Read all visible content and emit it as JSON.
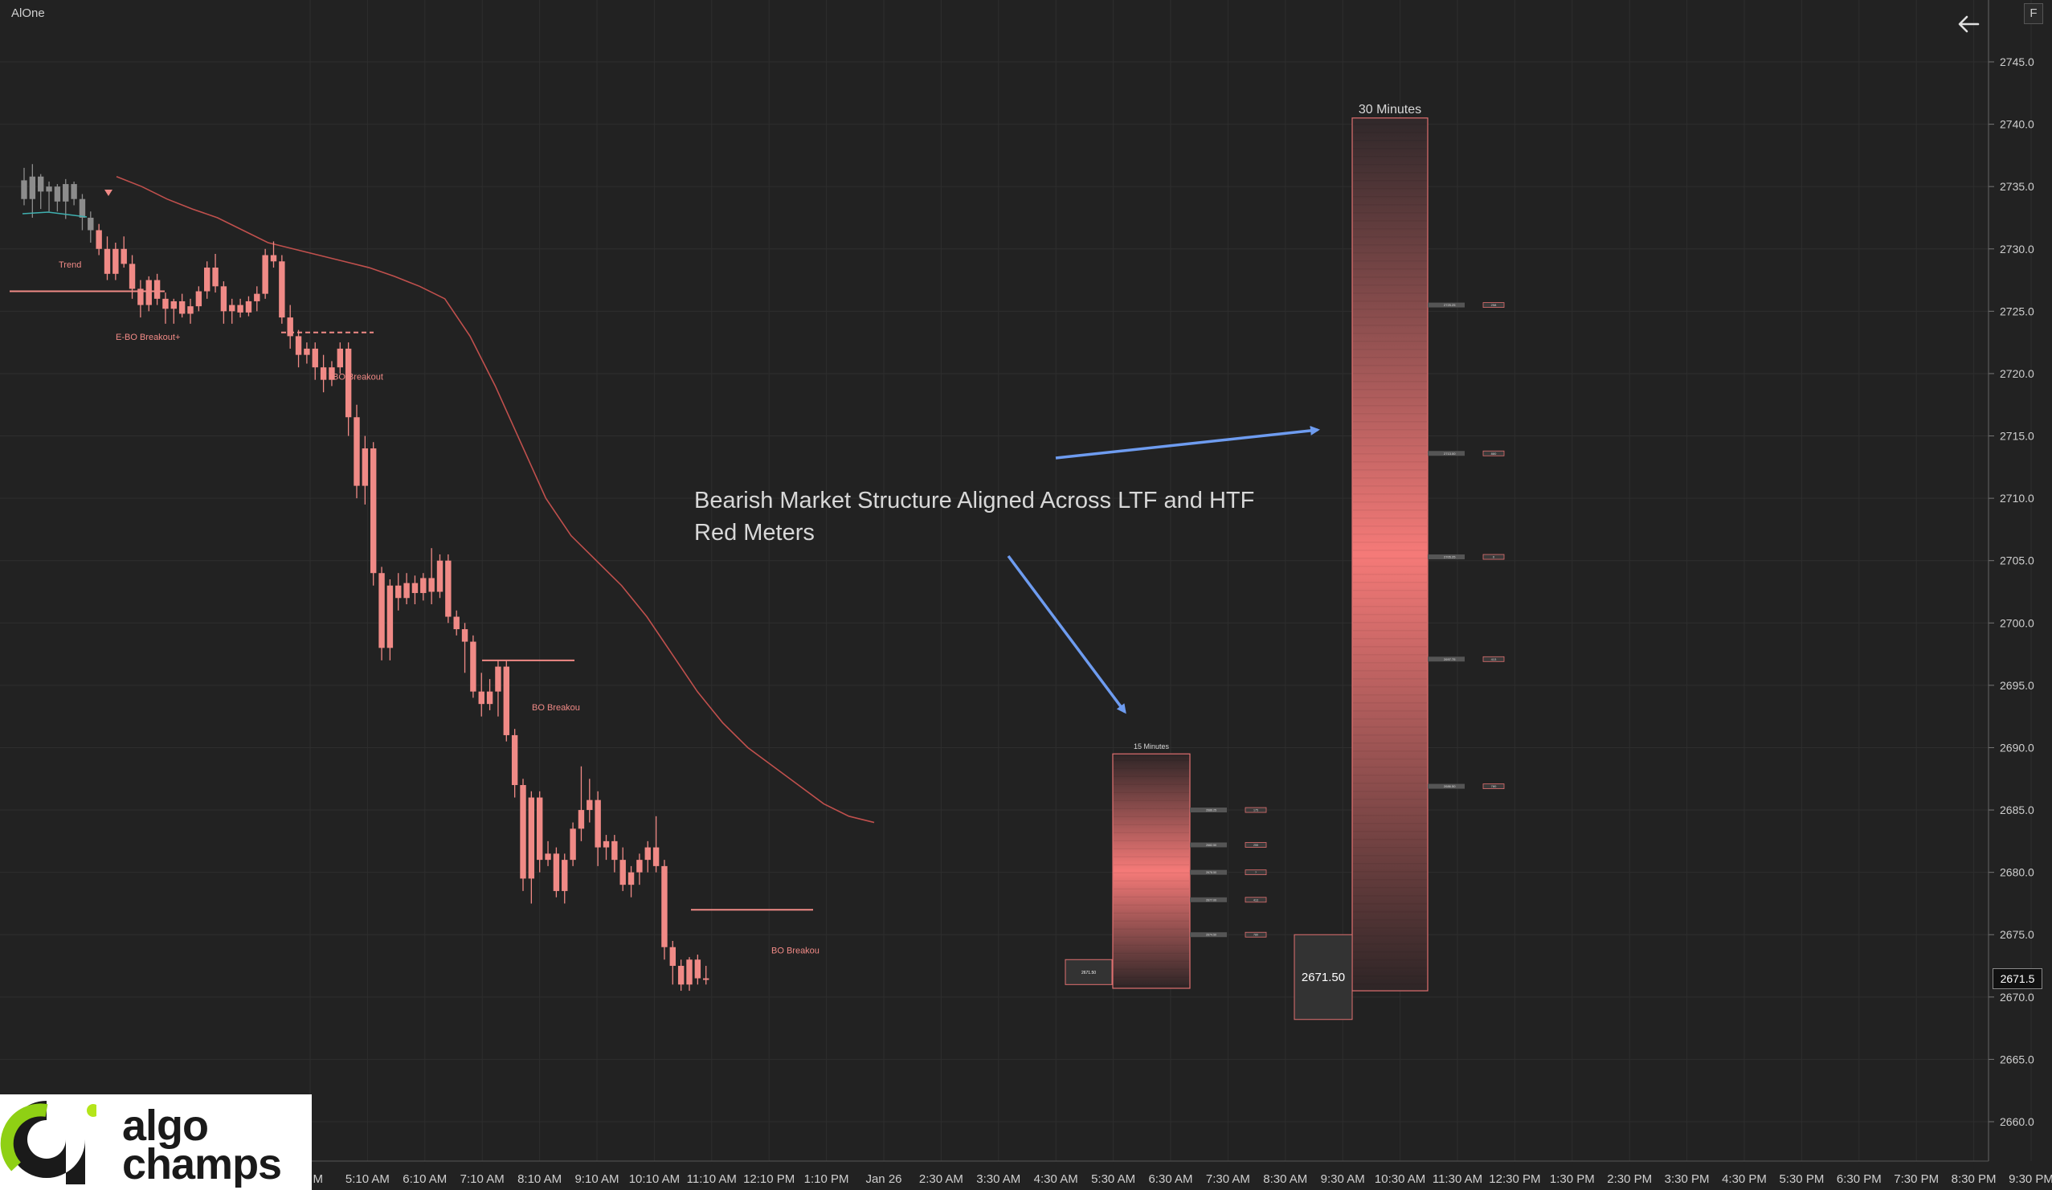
{
  "app": {
    "title": "AlOne",
    "corner_button": "F",
    "back_icon": "arrow-left-icon"
  },
  "colors": {
    "background": "#222222",
    "bear": "#f08a86",
    "neutral": "#8c8c8c",
    "ma_line": "#c0504d",
    "arrow": "#6e9cf0",
    "grid": "#2e2e2e"
  },
  "annotation": {
    "line1": "Bearish Market Structure Aligned Across LTF and HTF",
    "line2": "Red Meters"
  },
  "logo": {
    "word1": "algo",
    "word2": "champs"
  },
  "chart_data": {
    "type": "candlestick",
    "y_axis": {
      "ticks": [
        2745.0,
        2740.0,
        2735.0,
        2730.0,
        2725.0,
        2720.0,
        2715.0,
        2710.0,
        2705.0,
        2700.0,
        2695.0,
        2690.0,
        2685.0,
        2680.0,
        2675.0,
        2670.0,
        2665.0,
        2660.0
      ],
      "tick_labels": [
        "2745.0",
        "2740.0",
        "2735.0",
        "2730.0",
        "2725.0",
        "2720.0",
        "2715.0",
        "2710.0",
        "2705.0",
        "2700.0",
        "2695.0",
        "2690.0",
        "2685.0",
        "2680.0",
        "2675.0",
        "2670.0",
        "2665.0",
        "2660.0"
      ],
      "last_price_label": "2671.5",
      "range": [
        2657.5,
        2747.3
      ]
    },
    "x_axis": {
      "labels": [
        "M",
        "5:10 AM",
        "6:10 AM",
        "7:10 AM",
        "8:10 AM",
        "9:10 AM",
        "10:10 AM",
        "11:10 AM",
        "12:10 PM",
        "1:10 PM",
        "Jan 26",
        "2:30 AM",
        "3:30 AM",
        "4:30 AM",
        "5:30 AM",
        "6:30 AM",
        "7:30 AM",
        "8:30 AM",
        "9:30 AM",
        "10:30 AM",
        "11:30 AM",
        "12:30 PM",
        "1:30 PM",
        "2:30 PM",
        "3:30 PM",
        "4:30 PM",
        "5:30 PM",
        "6:30 PM",
        "7:30 PM",
        "8:30 PM",
        "9:30 PM"
      ]
    },
    "candles": [
      [
        2735.5,
        2736.5,
        2733.5,
        2734.0
      ],
      [
        2734.0,
        2736.8,
        2732.5,
        2735.8
      ],
      [
        2735.8,
        2736.0,
        2733.2,
        2734.6
      ],
      [
        2734.6,
        2735.4,
        2733.0,
        2735.0
      ],
      [
        2735.0,
        2735.2,
        2733.0,
        2733.8
      ],
      [
        2733.8,
        2735.6,
        2732.4,
        2735.2
      ],
      [
        2735.2,
        2735.4,
        2733.5,
        2734.0
      ],
      [
        2734.0,
        2734.4,
        2731.5,
        2732.5
      ],
      [
        2732.5,
        2733.0,
        2730.5,
        2731.5
      ],
      [
        2731.5,
        2732.0,
        2729.5,
        2730.0
      ],
      [
        2730.0,
        2731.0,
        2727.5,
        2728.0
      ],
      [
        2728.0,
        2730.5,
        2727.5,
        2730.0
      ],
      [
        2730.0,
        2731.0,
        2728.5,
        2728.8
      ],
      [
        2728.8,
        2729.5,
        2726.0,
        2726.8
      ],
      [
        2726.8,
        2727.5,
        2724.5,
        2725.5
      ],
      [
        2725.5,
        2727.8,
        2725.0,
        2727.5
      ],
      [
        2727.5,
        2728.0,
        2725.5,
        2726.0
      ],
      [
        2726.0,
        2726.5,
        2724.0,
        2725.2
      ],
      [
        2725.2,
        2726.0,
        2724.0,
        2725.8
      ],
      [
        2725.8,
        2726.4,
        2724.5,
        2724.8
      ],
      [
        2724.8,
        2726.0,
        2724.0,
        2725.4
      ],
      [
        2725.4,
        2727.0,
        2725.0,
        2726.6
      ],
      [
        2726.6,
        2729.0,
        2726.0,
        2728.5
      ],
      [
        2728.5,
        2729.6,
        2726.5,
        2727.0
      ],
      [
        2727.0,
        2727.4,
        2724.0,
        2725.0
      ],
      [
        2725.0,
        2726.0,
        2724.0,
        2725.5
      ],
      [
        2725.5,
        2726.0,
        2724.5,
        2724.9
      ],
      [
        2724.9,
        2726.2,
        2724.6,
        2725.8
      ],
      [
        2725.8,
        2727.0,
        2725.0,
        2726.4
      ],
      [
        2726.4,
        2730.0,
        2726.0,
        2729.5
      ],
      [
        2729.5,
        2730.6,
        2728.5,
        2729.0
      ],
      [
        2729.0,
        2729.5,
        2724.0,
        2724.5
      ],
      [
        2724.5,
        2725.5,
        2722.0,
        2723.0
      ],
      [
        2723.0,
        2723.5,
        2720.5,
        2721.5
      ],
      [
        2721.5,
        2722.5,
        2720.8,
        2722.0
      ],
      [
        2722.0,
        2722.5,
        2719.5,
        2720.5
      ],
      [
        2720.5,
        2721.5,
        2718.5,
        2719.5
      ],
      [
        2719.5,
        2721.0,
        2719.0,
        2720.5
      ],
      [
        2720.5,
        2722.5,
        2720.0,
        2722.0
      ],
      [
        2722.0,
        2722.5,
        2715.0,
        2716.5
      ],
      [
        2716.5,
        2717.5,
        2710.0,
        2711.0
      ],
      [
        2711.0,
        2715.0,
        2709.5,
        2714.0
      ],
      [
        2714.0,
        2714.5,
        2703.0,
        2704.0
      ],
      [
        2704.0,
        2704.5,
        2697.0,
        2698.0
      ],
      [
        2698.0,
        2703.5,
        2697.0,
        2703.0
      ],
      [
        2703.0,
        2704.0,
        2701.0,
        2702.0
      ],
      [
        2702.0,
        2704.0,
        2701.5,
        2703.2
      ],
      [
        2703.2,
        2703.8,
        2701.5,
        2702.4
      ],
      [
        2702.4,
        2704.0,
        2701.8,
        2703.6
      ],
      [
        2703.6,
        2706.0,
        2701.5,
        2702.5
      ],
      [
        2702.5,
        2705.5,
        2702.0,
        2705.0
      ],
      [
        2705.0,
        2705.5,
        2700.0,
        2700.5
      ],
      [
        2700.5,
        2701.0,
        2699.0,
        2699.5
      ],
      [
        2699.5,
        2700.0,
        2696.0,
        2698.5
      ],
      [
        2698.5,
        2699.0,
        2694.0,
        2694.5
      ],
      [
        2694.5,
        2696.0,
        2692.5,
        2693.5
      ],
      [
        2693.5,
        2695.5,
        2693.0,
        2694.5
      ],
      [
        2694.5,
        2697.0,
        2692.5,
        2696.5
      ],
      [
        2696.5,
        2697.0,
        2690.5,
        2691.0
      ],
      [
        2691.0,
        2691.5,
        2686.0,
        2687.0
      ],
      [
        2687.0,
        2687.5,
        2678.5,
        2679.5
      ],
      [
        2679.5,
        2686.5,
        2677.5,
        2686.0
      ],
      [
        2686.0,
        2686.5,
        2680.0,
        2681.0
      ],
      [
        2681.0,
        2682.5,
        2680.5,
        2681.5
      ],
      [
        2681.5,
        2682.0,
        2678.0,
        2678.5
      ],
      [
        2678.5,
        2681.5,
        2677.5,
        2681.0
      ],
      [
        2681.0,
        2684.0,
        2680.5,
        2683.5
      ],
      [
        2683.5,
        2688.5,
        2682.5,
        2685.0
      ],
      [
        2685.0,
        2687.5,
        2684.0,
        2685.8
      ],
      [
        2685.8,
        2686.5,
        2680.5,
        2682.0
      ],
      [
        2682.0,
        2683.0,
        2681.0,
        2682.5
      ],
      [
        2682.5,
        2683.0,
        2680.0,
        2681.0
      ],
      [
        2681.0,
        2682.0,
        2678.5,
        2679.0
      ],
      [
        2679.0,
        2680.5,
        2678.0,
        2680.0
      ],
      [
        2680.0,
        2681.5,
        2679.0,
        2681.0
      ],
      [
        2681.0,
        2682.5,
        2680.0,
        2682.0
      ],
      [
        2682.0,
        2684.5,
        2680.0,
        2680.5
      ],
      [
        2680.5,
        2681.0,
        2673.0,
        2674.0
      ],
      [
        2674.0,
        2674.5,
        2671.0,
        2672.5
      ],
      [
        2672.5,
        2673.0,
        2670.5,
        2671.0
      ],
      [
        2671.0,
        2673.2,
        2670.5,
        2673.0
      ],
      [
        2673.0,
        2673.4,
        2671.0,
        2671.5
      ],
      [
        2671.5,
        2672.5,
        2671.0,
        2671.5
      ]
    ],
    "neutral_candle_count": 9,
    "moving_average": [
      2735.8,
      2735.0,
      2734.0,
      2733.2,
      2732.5,
      2731.5,
      2730.5,
      2730.0,
      2729.5,
      2729.0,
      2728.5,
      2727.8,
      2727.0,
      2726.0,
      2723.0,
      2719.0,
      2714.5,
      2710.0,
      2707.0,
      2705.0,
      2703.0,
      2700.5,
      2697.5,
      2694.5,
      2692.0,
      2690.0,
      2688.5,
      2687.0,
      2685.5,
      2684.5,
      2684.0
    ],
    "level_lines": [
      {
        "price": 2726.6,
        "style": "solid"
      },
      {
        "price": 2723.3,
        "style": "dashed"
      },
      {
        "price": 2697.0,
        "style": "solid"
      },
      {
        "price": 2677.0,
        "style": "solid"
      }
    ],
    "text_labels": [
      {
        "text": "Trend",
        "price": 2728.5
      },
      {
        "text": "E-BO Breakout+",
        "price": 2722.7
      },
      {
        "text": "BO Breakout",
        "price": 2719.5
      },
      {
        "text": "BO Breakou",
        "price": 2693.0
      },
      {
        "text": "BO Breakou",
        "price": 2673.5
      }
    ],
    "meters": [
      {
        "title": "15 Minutes",
        "top": 2689.5,
        "bottom": 2670.7,
        "price_box": "2671.50",
        "levels": [
          {
            "price": 2685.0,
            "tag": "2686.25",
            "value": "175"
          },
          {
            "price": 2682.2,
            "tag": "2682.50",
            "value": "255"
          },
          {
            "price": 2680.0,
            "tag": "2678.50",
            "value": "?"
          },
          {
            "price": 2677.8,
            "tag": "2677.00",
            "value": "413"
          },
          {
            "price": 2675.0,
            "tag": "2674.50",
            "value": "780"
          }
        ]
      },
      {
        "title": "30 Minutes",
        "top": 2740.5,
        "bottom": 2670.5,
        "price_box": "2671.50",
        "levels": [
          {
            "price": 2725.5,
            "tag": "2725.25",
            "value": "258"
          },
          {
            "price": 2713.6,
            "tag": "2713.00",
            "value": "880"
          },
          {
            "price": 2705.3,
            "tag": "2705.25",
            "value": "0"
          },
          {
            "price": 2697.1,
            "tag": "2697.75",
            "value": "413"
          },
          {
            "price": 2686.9,
            "tag": "2686.50",
            "value": "780"
          }
        ]
      }
    ],
    "legend": "none",
    "grid": true
  }
}
